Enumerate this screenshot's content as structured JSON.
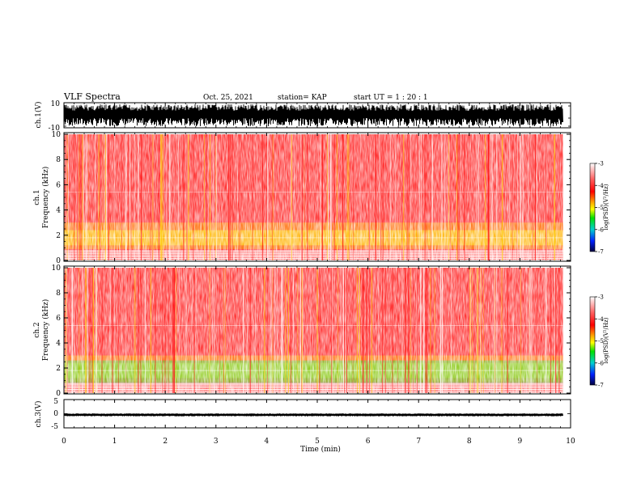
{
  "header": {
    "title": "VLF Spectra",
    "date": "Oct. 25, 2021",
    "station": "station= KAP",
    "start": "start  UT =   1 : 20 : 1"
  },
  "chart_data": [
    {
      "type": "line",
      "name": "ch1-waveform",
      "ylabel": "ch.1(V)",
      "ylim": [
        -10,
        10
      ],
      "ytick_labels": [
        "10",
        "-10"
      ],
      "x_range_min": [
        0,
        9.85
      ]
    },
    {
      "type": "heatmap",
      "name": "ch1-spectrogram",
      "ylabel": "ch.1\nFrequency (kHz)",
      "ylabel_top": "ch.1",
      "ylabel_bottom": "Frequency (kHz)",
      "ylim": [
        0,
        10
      ],
      "ytick_labels": [
        "0",
        "2",
        "4",
        "6",
        "8",
        "10"
      ],
      "colorbar": {
        "label": "log(PSD)(V²/Hz)",
        "range": [
          -7,
          -3
        ],
        "tick_labels": [
          "-3",
          "-4",
          "-5",
          "-6",
          "-7"
        ]
      }
    },
    {
      "type": "heatmap",
      "name": "ch2-spectrogram",
      "ylabel": "ch.2\nFrequency (kHz)",
      "ylabel_top": "ch.2",
      "ylabel_bottom": "Frequency (kHz)",
      "ylim": [
        0,
        10
      ],
      "ytick_labels": [
        "0",
        "2",
        "4",
        "6",
        "8",
        "10"
      ],
      "colorbar": {
        "label": "log(PSD)(V²/Hz)",
        "range": [
          -7,
          -3
        ],
        "tick_labels": [
          "-3",
          "-4",
          "-5",
          "-6",
          "-7"
        ]
      }
    },
    {
      "type": "line",
      "name": "ch3-waveform",
      "ylabel": "ch.3(V)",
      "ylim": [
        -5,
        5
      ],
      "ytick_labels": [
        "5",
        "0",
        "-5"
      ],
      "x_range_min": [
        0,
        9.85
      ]
    }
  ],
  "xaxis": {
    "label": "Time (min)",
    "range": [
      0,
      10
    ],
    "tick_labels": [
      "0",
      "1",
      "2",
      "3",
      "4",
      "5",
      "6",
      "7",
      "8",
      "9",
      "10"
    ]
  },
  "colors": {
    "axis": "#000000",
    "spec_background": "#ff4040",
    "spec_white": "#ffffff",
    "spec_yellow": "#ffd000",
    "spec_green": "#33dd33"
  }
}
